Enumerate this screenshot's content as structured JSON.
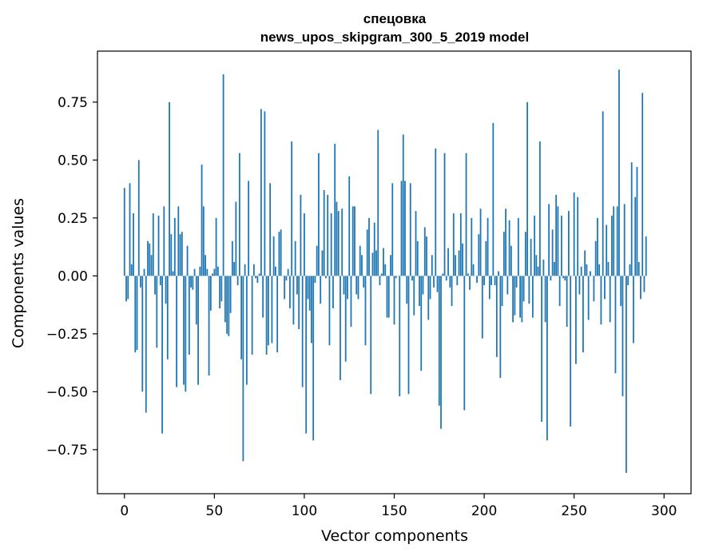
{
  "chart_data": {
    "type": "bar",
    "title_line1": "спецовка",
    "title_line2": "news_upos_skipgram_300_5_2019 model",
    "xlabel": "Vector components",
    "ylabel": "Components values",
    "xlim": [
      -15,
      315
    ],
    "ylim": [
      -0.94,
      0.97
    ],
    "xticks": [
      0,
      50,
      100,
      150,
      200,
      250,
      300
    ],
    "yticks": [
      0.75,
      0.5,
      0.25,
      0.0,
      -0.25,
      -0.5,
      -0.75
    ],
    "ytick_labels": [
      "0.75",
      "0.50",
      "0.25",
      "0.00",
      "−0.25",
      "−0.50",
      "−0.75"
    ],
    "bar_color": "#1f77b4",
    "values": [
      0.38,
      -0.11,
      -0.1,
      0.4,
      0.05,
      0.27,
      -0.33,
      -0.32,
      0.5,
      -0.05,
      -0.5,
      0.03,
      -0.59,
      0.15,
      0.14,
      0.09,
      0.27,
      -0.08,
      -0.31,
      0.26,
      -0.04,
      -0.68,
      0.3,
      -0.12,
      -0.36,
      0.75,
      0.18,
      0.02,
      0.25,
      -0.48,
      0.3,
      0.18,
      0.19,
      -0.47,
      -0.5,
      0.13,
      -0.34,
      -0.05,
      -0.06,
      0.03,
      -0.21,
      -0.47,
      0.04,
      0.48,
      0.3,
      0.09,
      0.03,
      -0.43,
      -0.15,
      0.01,
      0.03,
      0.25,
      0.04,
      -0.14,
      -0.11,
      0.87,
      -0.2,
      -0.25,
      -0.26,
      -0.16,
      0.15,
      0.06,
      0.32,
      -0.04,
      0.53,
      -0.36,
      -0.8,
      0.05,
      -0.47,
      0.41,
      0.0,
      -0.34,
      0.05,
      -0.01,
      -0.03,
      0.01,
      0.72,
      -0.18,
      0.71,
      -0.34,
      -0.3,
      0.4,
      -0.29,
      0.17,
      0.04,
      -0.33,
      0.19,
      0.2,
      0.0,
      -0.1,
      -0.02,
      0.03,
      -0.14,
      0.58,
      -0.21,
      0.15,
      -0.08,
      -0.23,
      0.35,
      -0.48,
      0.27,
      -0.68,
      -0.1,
      -0.15,
      -0.29,
      -0.71,
      -0.03,
      0.13,
      0.53,
      -0.12,
      0.11,
      0.37,
      -0.01,
      0.35,
      -0.3,
      0.27,
      -0.14,
      0.57,
      0.32,
      0.28,
      -0.45,
      0.29,
      -0.08,
      -0.37,
      -0.1,
      0.43,
      -0.22,
      0.3,
      0.3,
      -0.08,
      -0.1,
      0.13,
      0.09,
      -0.05,
      -0.3,
      0.2,
      0.25,
      -0.51,
      0.1,
      0.23,
      0.11,
      0.63,
      -0.04,
      0.01,
      0.12,
      0.05,
      -0.18,
      -0.18,
      0.09,
      0.4,
      -0.21,
      -0.01,
      0.0,
      -0.52,
      0.41,
      0.61,
      0.41,
      -0.12,
      -0.51,
      0.4,
      -0.02,
      -0.17,
      0.28,
      0.15,
      -0.13,
      -0.41,
      -0.08,
      0.21,
      0.17,
      -0.19,
      -0.1,
      0.09,
      -0.05,
      0.55,
      -0.07,
      -0.56,
      -0.66,
      0.01,
      0.53,
      -0.02,
      0.12,
      -0.05,
      -0.13,
      0.27,
      0.09,
      -0.04,
      0.11,
      0.27,
      0.14,
      -0.58,
      0.53,
      0.01,
      -0.06,
      0.25,
      0.05,
      0.0,
      -0.03,
      0.18,
      0.29,
      -0.27,
      -0.04,
      0.15,
      0.25,
      -0.1,
      -0.04,
      0.66,
      -0.04,
      -0.35,
      0.02,
      -0.44,
      -0.13,
      0.19,
      0.29,
      -0.08,
      0.24,
      0.13,
      -0.2,
      -0.17,
      -0.05,
      0.25,
      -0.18,
      -0.2,
      -0.11,
      0.19,
      0.75,
      -0.12,
      0.16,
      -0.18,
      0.26,
      0.09,
      0.04,
      0.58,
      -0.63,
      0.07,
      -0.2,
      -0.71,
      0.31,
      -0.02,
      0.2,
      0.06,
      0.35,
      0.3,
      -0.13,
      0.26,
      -0.01,
      -0.02,
      -0.22,
      0.28,
      -0.65,
      0.0,
      0.36,
      -0.38,
      0.34,
      -0.08,
      0.04,
      -0.33,
      0.11,
      0.05,
      -0.19,
      0.02,
      0.0,
      -0.11,
      0.15,
      0.25,
      0.05,
      -0.21,
      0.71,
      -0.1,
      0.22,
      0.06,
      -0.2,
      0.26,
      0.3,
      -0.42,
      0.3,
      0.89,
      -0.13,
      -0.52,
      0.31,
      -0.85,
      -0.04,
      0.05,
      0.49,
      -0.29,
      0.34,
      0.47,
      0.06,
      -0.1,
      0.79,
      -0.07,
      0.17
    ]
  }
}
